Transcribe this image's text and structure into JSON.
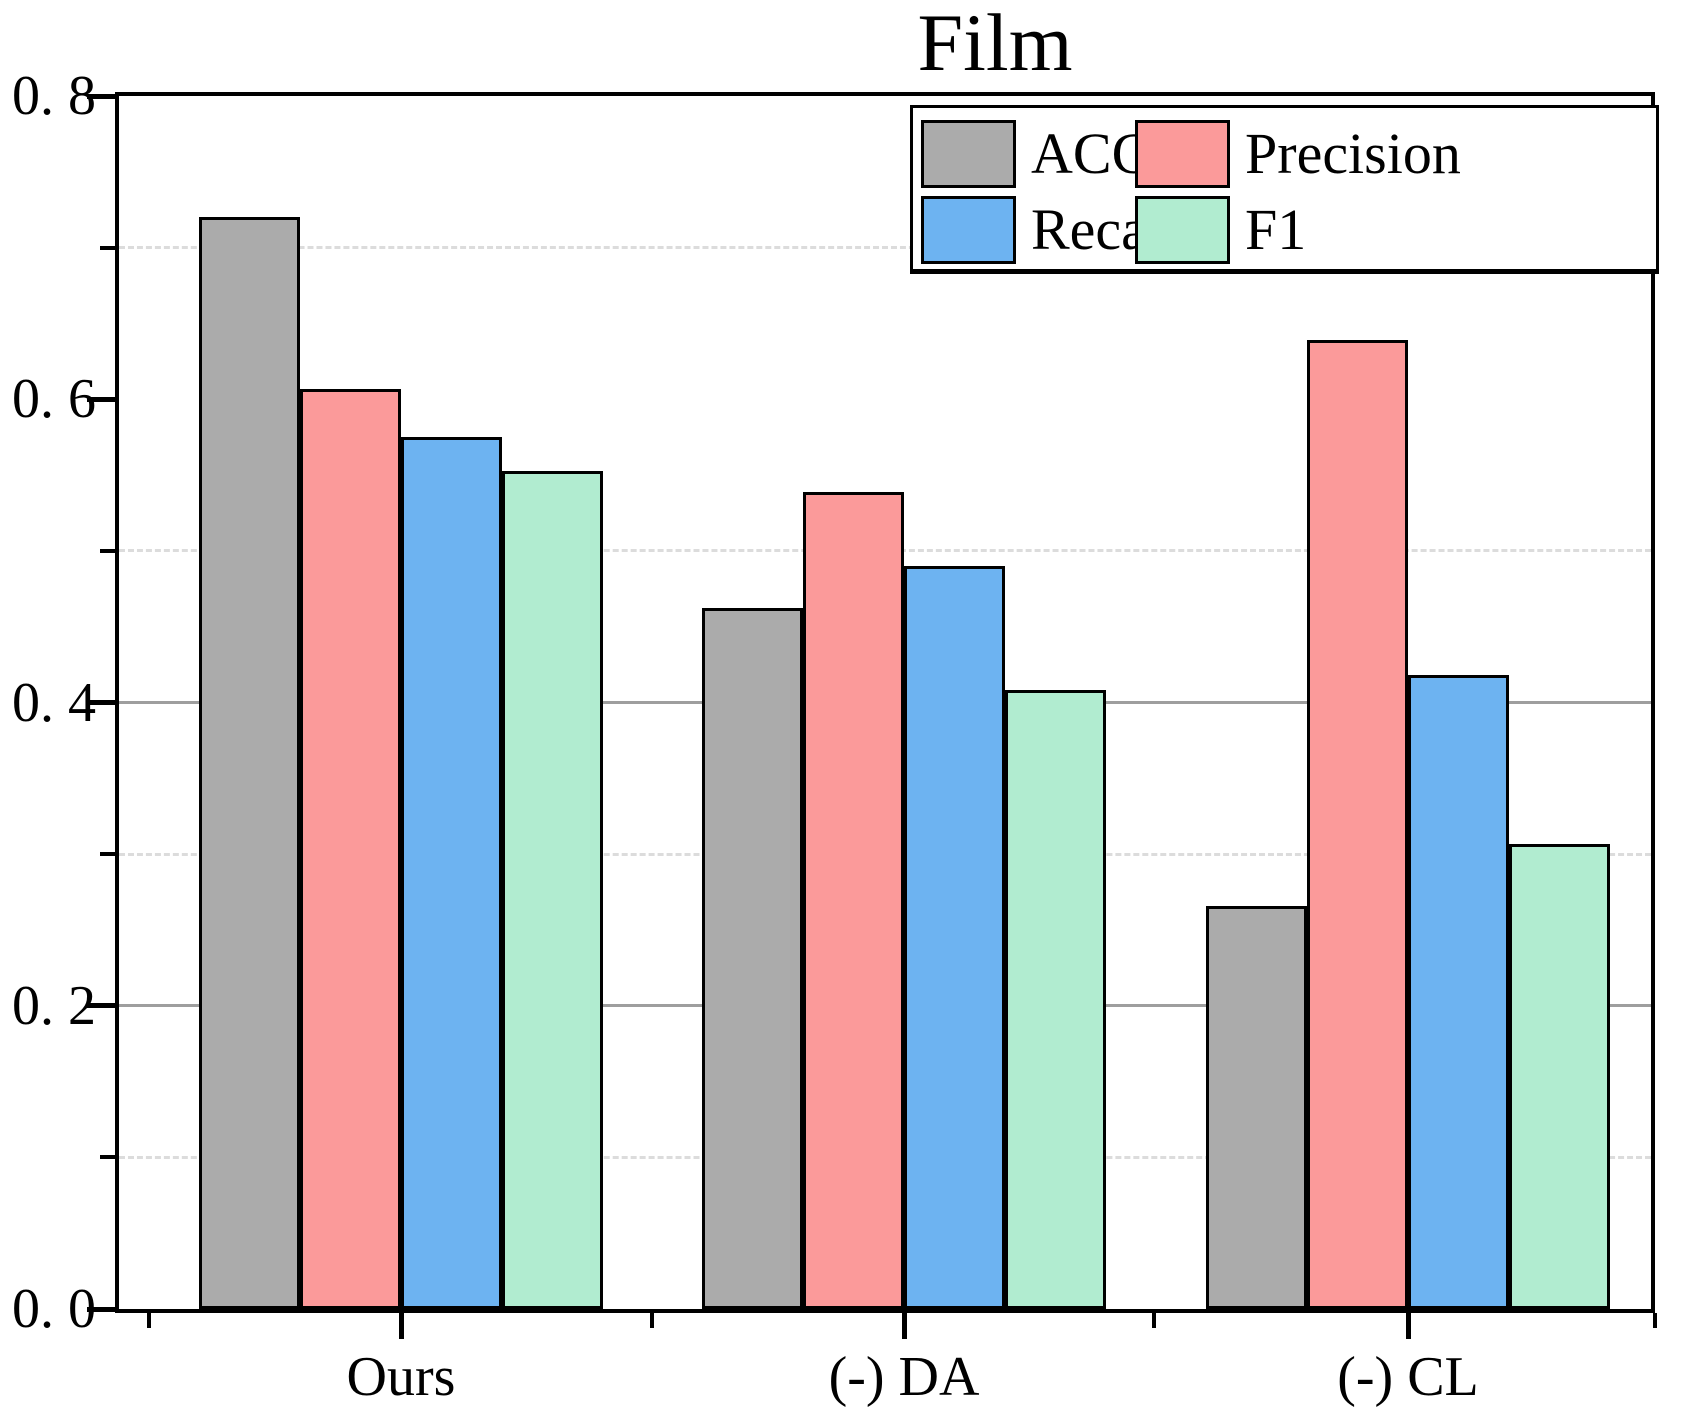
{
  "chart_data": {
    "type": "bar",
    "title": "Film",
    "xlabel": "",
    "ylabel": "",
    "categories": [
      "Ours",
      "(-) DA",
      "(-) CL"
    ],
    "series": [
      {
        "name": "ACC",
        "color": "#ababab",
        "values": [
          0.72,
          0.462,
          0.266
        ]
      },
      {
        "name": "Precision",
        "color": "#fb9a9a",
        "values": [
          0.607,
          0.539,
          0.639
        ]
      },
      {
        "name": "Recall",
        "color": "#6db3f1",
        "values": [
          0.575,
          0.49,
          0.418
        ]
      },
      {
        "name": "F1",
        "color": "#b1ecd0",
        "values": [
          0.553,
          0.408,
          0.307
        ]
      }
    ],
    "ylim": [
      0,
      0.8
    ],
    "y_major_ticks": [
      {
        "value": 0.0,
        "label": "0. 0"
      },
      {
        "value": 0.2,
        "label": "0. 2"
      },
      {
        "value": 0.4,
        "label": "0. 4"
      },
      {
        "value": 0.6,
        "label": "0. 6"
      },
      {
        "value": 0.8,
        "label": "0. 8"
      }
    ],
    "y_minor_ticks": [
      0.1,
      0.3,
      0.5,
      0.7
    ],
    "solid_gridlines": [
      0.2,
      0.4
    ],
    "dashed_gridlines": [
      0.1,
      0.3,
      0.5,
      0.7
    ],
    "legend_position": "top-right",
    "legend_rows": [
      [
        "ACC",
        "Precision"
      ],
      [
        "Recall",
        "F1"
      ]
    ],
    "grid": "on",
    "axis_color": "#000000",
    "solid_grid_color": "#9e9e9e",
    "dashed_grid_color": "#dcdcdc"
  }
}
